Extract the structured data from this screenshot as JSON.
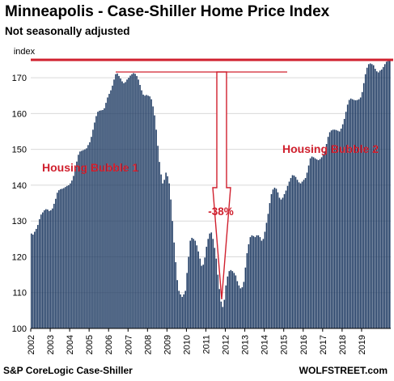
{
  "title": "Minneapolis - Case-Shiller Home Price Index",
  "subtitle": "Not seasonally adjusted",
  "source_left": "S&P CoreLogic Case-Shiller",
  "source_right": "WOLFSTREET.com",
  "colors": {
    "bar": "#1f3b63",
    "annotation": "#d0202e",
    "grid": "#d9d9d9"
  },
  "chart_data": {
    "type": "bar",
    "ylabel": "index",
    "xlabel": "",
    "ylim": [
      100,
      175
    ],
    "yticks": [
      100,
      110,
      120,
      130,
      140,
      150,
      160,
      170
    ],
    "xticks": [
      "2002",
      "2003",
      "2004",
      "2005",
      "2006",
      "2007",
      "2008",
      "2009",
      "2010",
      "2011",
      "2012",
      "2013",
      "2014",
      "2015",
      "2016",
      "2017",
      "2018",
      "2019"
    ],
    "period": "monthly, Jan 2002 - Jun 2019",
    "grid": true,
    "values": [
      126.5,
      126.2,
      127.0,
      127.8,
      128.9,
      130.5,
      131.8,
      132.4,
      133.0,
      133.3,
      133.2,
      132.8,
      133.0,
      133.5,
      134.8,
      136.2,
      137.9,
      138.6,
      138.9,
      139.0,
      139.2,
      139.5,
      139.8,
      140.0,
      140.5,
      141.3,
      142.6,
      144.5,
      146.6,
      148.5,
      149.4,
      149.6,
      149.8,
      150.0,
      150.3,
      151.2,
      152.0,
      153.5,
      155.5,
      157.5,
      159.3,
      160.5,
      160.8,
      160.9,
      161.0,
      161.5,
      163.0,
      164.5,
      165.5,
      166.5,
      167.8,
      169.5,
      171.0,
      171.2,
      170.5,
      169.8,
      169.0,
      168.5,
      168.8,
      169.5,
      170.0,
      170.6,
      171.0,
      171.3,
      171.1,
      170.5,
      169.5,
      168.0,
      166.5,
      165.3,
      165.0,
      165.2,
      165.0,
      164.8,
      164.0,
      162.0,
      159.5,
      155.5,
      151.0,
      146.5,
      143.0,
      140.5,
      141.5,
      143.5,
      142.5,
      140.5,
      136.0,
      130.0,
      124.0,
      118.5,
      113.5,
      110.5,
      109.5,
      108.8,
      109.5,
      110.5,
      115.5,
      120.0,
      124.5,
      125.3,
      125.0,
      124.5,
      123.2,
      121.5,
      119.5,
      117.5,
      117.8,
      119.8,
      122.8,
      125.0,
      126.5,
      126.8,
      125.0,
      122.5,
      119.5,
      115.0,
      111.0,
      107.5,
      106.0,
      108.0,
      112.0,
      114.5,
      116.0,
      116.3,
      116.0,
      115.5,
      114.8,
      113.2,
      112.0,
      111.2,
      111.5,
      113.0,
      117.0,
      121.0,
      123.5,
      125.5,
      126.0,
      125.8,
      125.5,
      126.0,
      126.0,
      125.5,
      124.5,
      125.0,
      127.0,
      129.5,
      132.0,
      135.0,
      137.5,
      138.8,
      139.3,
      139.0,
      138.0,
      136.5,
      136.0,
      136.5,
      137.5,
      138.5,
      139.8,
      141.0,
      142.0,
      142.8,
      142.7,
      142.3,
      141.5,
      140.8,
      140.5,
      141.0,
      141.5,
      142.0,
      143.5,
      145.5,
      147.5,
      148.0,
      147.8,
      147.5,
      147.2,
      147.0,
      147.3,
      147.8,
      148.5,
      149.5,
      151.5,
      153.5,
      154.8,
      155.3,
      155.5,
      155.5,
      155.4,
      155.2,
      155.0,
      155.8,
      157.0,
      158.5,
      160.5,
      162.5,
      163.8,
      164.2,
      164.0,
      163.8,
      163.7,
      163.8,
      164.0,
      164.5,
      166.0,
      168.5,
      171.0,
      172.8,
      173.8,
      174.0,
      173.8,
      173.5,
      172.5,
      171.8,
      171.5,
      172.0,
      172.3,
      173.0,
      173.8,
      174.5,
      175.0,
      175.0
    ],
    "annotations": [
      {
        "text": "Housing Bubble 1"
      },
      {
        "text": "Housing Bubble 2"
      },
      {
        "text": "-38%"
      }
    ]
  }
}
